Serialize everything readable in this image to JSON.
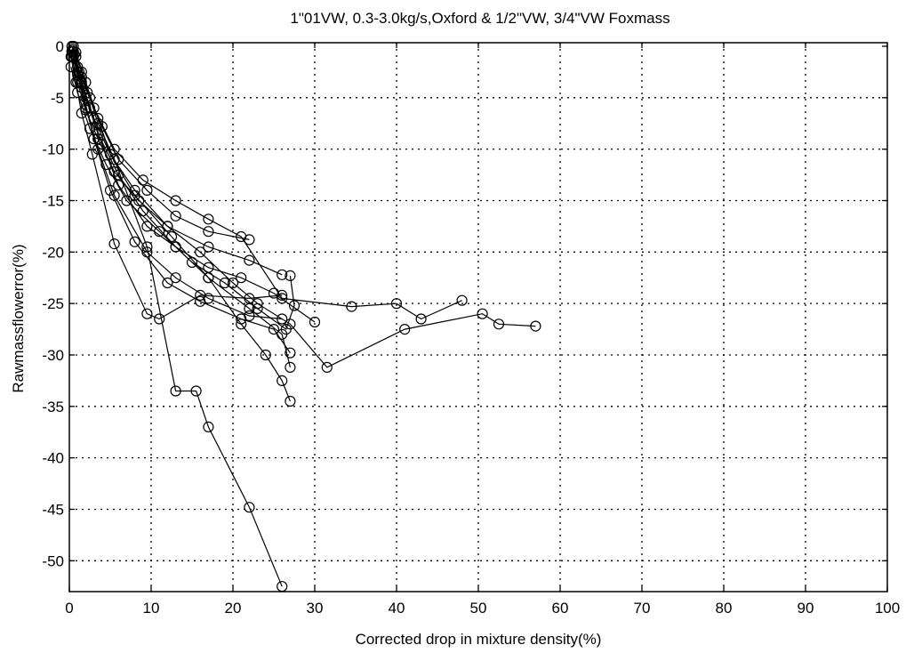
{
  "chart_data": {
    "type": "line",
    "title": "1\"01VW, 0.3-3.0kg/s,Oxford & 1/2\"VW, 3/4\"VW Foxmass",
    "xlabel": "Corrected drop in mixture density(%)",
    "ylabel": "Rawmassflowerror(%)",
    "xlim": [
      0,
      100
    ],
    "ylim": [
      -53,
      0
    ],
    "xticks": [
      "0",
      "10",
      "20",
      "30",
      "40",
      "50",
      "60",
      "70",
      "80",
      "90",
      "100"
    ],
    "yticks": [
      "0",
      "-5",
      "-10",
      "-15",
      "-20",
      "-25",
      "-30",
      "-35",
      "-40",
      "-45",
      "-50"
    ],
    "grid": true,
    "marker": "circle",
    "line_color": "#000000",
    "series": [
      {
        "points": [
          [
            0.3,
            0
          ],
          [
            0.8,
            -1
          ],
          [
            1.5,
            -2.5
          ],
          [
            2.5,
            -5
          ],
          [
            3.5,
            -7.5
          ],
          [
            5.5,
            -11
          ],
          [
            9.5,
            -19.5
          ],
          [
            13,
            -33.5
          ],
          [
            15.5,
            -33.5
          ],
          [
            17,
            -37
          ],
          [
            22,
            -44.8
          ],
          [
            26,
            -52.5
          ]
        ]
      },
      {
        "points": [
          [
            0.5,
            0
          ],
          [
            1.5,
            -4
          ],
          [
            3,
            -9
          ],
          [
            5,
            -14
          ],
          [
            8,
            -19
          ],
          [
            12,
            -23
          ],
          [
            16,
            -24.8
          ],
          [
            21,
            -26.5
          ],
          [
            25,
            -27.5
          ],
          [
            27,
            -29.8
          ]
        ]
      },
      {
        "points": [
          [
            0.3,
            -0.5
          ],
          [
            1,
            -2.8
          ],
          [
            2,
            -6
          ],
          [
            3.5,
            -10
          ],
          [
            5.5,
            -14.5
          ],
          [
            9.5,
            -20
          ],
          [
            13,
            -22.5
          ],
          [
            17,
            -24.5
          ],
          [
            22,
            -26.2
          ],
          [
            26,
            -26.5
          ]
        ]
      },
      {
        "points": [
          [
            0.2,
            -1
          ],
          [
            0.8,
            -3.5
          ],
          [
            1.5,
            -6.5
          ],
          [
            2.8,
            -10.5
          ],
          [
            5.5,
            -19.2
          ],
          [
            9.5,
            -26
          ],
          [
            11,
            -26.5
          ],
          [
            16,
            -24.2
          ],
          [
            22,
            -24.5
          ],
          [
            26,
            -24.2
          ]
        ]
      },
      {
        "points": [
          [
            0.5,
            -0.5
          ],
          [
            1.2,
            -2.5
          ],
          [
            2.5,
            -6
          ],
          [
            4,
            -9.5
          ],
          [
            6,
            -13.5
          ],
          [
            9.5,
            -17.5
          ],
          [
            13,
            -19.5
          ],
          [
            17,
            -21.5
          ],
          [
            21,
            -22.5
          ],
          [
            25,
            -24
          ],
          [
            30,
            -26.8
          ]
        ]
      },
      {
        "points": [
          [
            0.3,
            -1
          ],
          [
            1,
            -3.5
          ],
          [
            2,
            -6.2
          ],
          [
            3.5,
            -9
          ],
          [
            5.5,
            -12.2
          ],
          [
            8.5,
            -15
          ],
          [
            12,
            -17.5
          ],
          [
            17,
            -19.5
          ],
          [
            22,
            -20.8
          ],
          [
            26,
            -22.2
          ]
        ]
      },
      {
        "points": [
          [
            0.4,
            -0.3
          ],
          [
            1,
            -2
          ],
          [
            2.2,
            -4.5
          ],
          [
            4,
            -7.8
          ],
          [
            6,
            -11
          ],
          [
            9.5,
            -14
          ],
          [
            13,
            -16.5
          ],
          [
            17,
            -18
          ],
          [
            22,
            -18.8
          ]
        ]
      },
      {
        "points": [
          [
            0.6,
            -0.8
          ],
          [
            1.5,
            -3
          ],
          [
            3,
            -6
          ],
          [
            5.5,
            -10
          ],
          [
            9,
            -13
          ],
          [
            13,
            -15
          ],
          [
            17,
            -16.8
          ],
          [
            21,
            -18.5
          ],
          [
            26,
            -24.5
          ],
          [
            34.5,
            -25.3
          ],
          [
            40,
            -25
          ],
          [
            43,
            -26.5
          ],
          [
            48,
            -24.7
          ]
        ]
      },
      {
        "points": [
          [
            0.5,
            -1
          ],
          [
            1.5,
            -3.5
          ],
          [
            3,
            -7
          ],
          [
            5,
            -10.5
          ],
          [
            8,
            -14
          ],
          [
            12,
            -17.5
          ],
          [
            16,
            -20
          ],
          [
            20,
            -23
          ],
          [
            23,
            -25
          ],
          [
            27,
            -27
          ],
          [
            31.5,
            -31.2
          ],
          [
            41,
            -27.5
          ],
          [
            50.5,
            -26
          ],
          [
            52.5,
            -27
          ],
          [
            57,
            -27.2
          ]
        ]
      },
      {
        "points": [
          [
            0.3,
            -0.5
          ],
          [
            1,
            -2.5
          ],
          [
            2,
            -5
          ],
          [
            3.5,
            -8.5
          ],
          [
            6,
            -12.5
          ],
          [
            9,
            -16
          ],
          [
            13,
            -19.5
          ],
          [
            17,
            -22.5
          ],
          [
            22,
            -25.5
          ],
          [
            26,
            -28
          ],
          [
            27,
            -31.2
          ]
        ]
      },
      {
        "points": [
          [
            0.8,
            -0.6
          ],
          [
            2,
            -3.5
          ],
          [
            3.5,
            -7
          ],
          [
            5,
            -10.5
          ],
          [
            8,
            -14.5
          ],
          [
            12.5,
            -18.5
          ],
          [
            17,
            -22.5
          ],
          [
            21,
            -27
          ],
          [
            24,
            -30
          ],
          [
            26,
            -32.5
          ],
          [
            27,
            -34.5
          ]
        ]
      },
      {
        "points": [
          [
            0.2,
            -2
          ],
          [
            1,
            -4.5
          ],
          [
            2.5,
            -8
          ],
          [
            4.5,
            -11.5
          ],
          [
            7,
            -15
          ],
          [
            11,
            -18
          ],
          [
            15,
            -21
          ],
          [
            19,
            -23
          ],
          [
            23,
            -25.5
          ],
          [
            26.5,
            -27.5
          ],
          [
            27.5,
            -25.2
          ],
          [
            27,
            -22.3
          ]
        ]
      }
    ]
  }
}
